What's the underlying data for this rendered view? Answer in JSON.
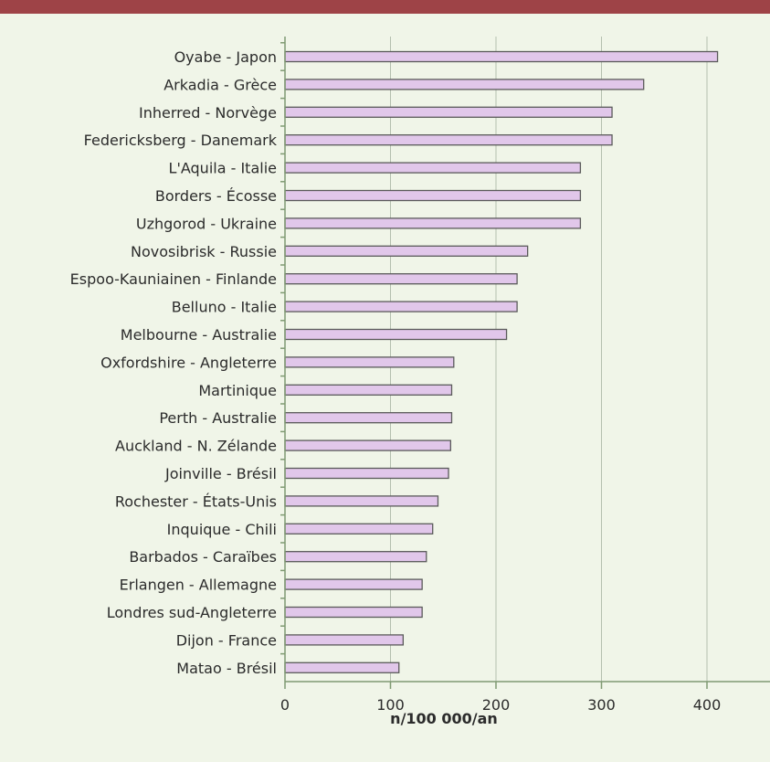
{
  "colors": {
    "background": "#f0f5e8",
    "top_rule": "#9e4347",
    "bar_fill": "#e1c7ea",
    "bar_stroke": "#5a5a5a",
    "grid": "#b4bfae",
    "axis": "#7f9a72"
  },
  "chart_data": {
    "type": "bar",
    "orientation": "horizontal",
    "title": "",
    "xlabel": "n/100 000/an",
    "ylabel": "",
    "xlim": [
      0,
      460
    ],
    "xticks": [
      0,
      100,
      200,
      300,
      400
    ],
    "grid": "vertical",
    "legend": "none",
    "categories": [
      "Oyabe - Japon",
      "Arkadia - Grèce",
      "Inherred - Norvège",
      "Federicksberg - Danemark",
      "L'Aquila - Italie",
      "Borders - Écosse",
      "Uzhgorod - Ukraine",
      "Novosibrisk - Russie",
      "Espoo-Kauniainen - Finlande",
      "Belluno - Italie",
      "Melbourne - Australie",
      "Oxfordshire - Angleterre",
      "Martinique",
      "Perth - Australie",
      "Auckland - N. Zélande",
      "Joinville - Brésil",
      "Rochester - États-Unis",
      "Inquique - Chili",
      "Barbados - Caraïbes",
      "Erlangen - Allemagne",
      "Londres sud-Angleterre",
      "Dijon - France",
      "Matao - Brésil"
    ],
    "values": [
      410,
      340,
      310,
      310,
      280,
      280,
      280,
      230,
      220,
      220,
      210,
      160,
      158,
      158,
      157,
      155,
      145,
      140,
      134,
      130,
      130,
      112,
      108
    ]
  }
}
